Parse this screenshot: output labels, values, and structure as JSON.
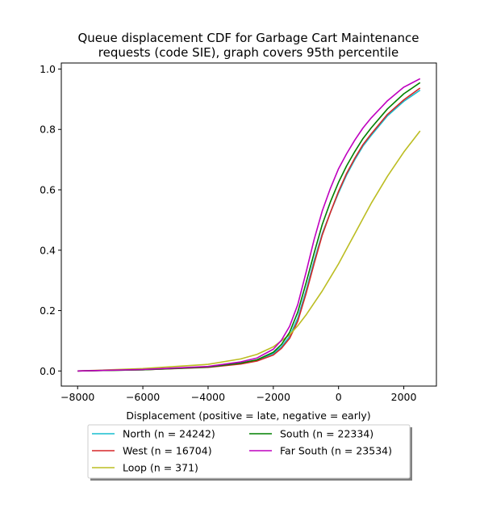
{
  "chart_data": {
    "type": "line",
    "title_lines": [
      "Queue displacement CDF for Garbage Cart Maintenance",
      "requests (code SIE), graph covers 95th percentile"
    ],
    "xlabel": "Displacement (positive = late, negative = early)",
    "ylabel": "",
    "xlim": [
      -8500,
      3000
    ],
    "ylim": [
      -0.05,
      1.02
    ],
    "xticks": [
      -8000,
      -6000,
      -4000,
      -2000,
      0,
      2000
    ],
    "yticks": [
      0.0,
      0.2,
      0.4,
      0.6,
      0.8,
      1.0
    ],
    "xtick_labels": [
      "−8000",
      "−6000",
      "−4000",
      "−2000",
      "0",
      "2000"
    ],
    "ytick_labels": [
      "0.0",
      "0.2",
      "0.4",
      "0.6",
      "0.8",
      "1.0"
    ],
    "grid": false,
    "legend_position": "below plot, center, two columns, with shadow",
    "series": [
      {
        "name": "North (n = 24242)",
        "color": "#17becf",
        "x": [
          -8000,
          -6000,
          -4000,
          -3000,
          -2500,
          -2000,
          -1750,
          -1500,
          -1250,
          -1000,
          -750,
          -500,
          -250,
          0,
          250,
          500,
          750,
          1000,
          1500,
          2000,
          2500
        ],
        "y": [
          0.0,
          0.004,
          0.013,
          0.025,
          0.035,
          0.058,
          0.08,
          0.115,
          0.175,
          0.265,
          0.365,
          0.455,
          0.525,
          0.59,
          0.65,
          0.7,
          0.745,
          0.78,
          0.845,
          0.893,
          0.93
        ]
      },
      {
        "name": "West (n = 16704)",
        "color": "#d62728",
        "x": [
          -8000,
          -6000,
          -4000,
          -3000,
          -2500,
          -2000,
          -1750,
          -1500,
          -1250,
          -1000,
          -750,
          -500,
          -250,
          0,
          250,
          500,
          750,
          1000,
          1500,
          2000,
          2500
        ],
        "y": [
          0.0,
          0.004,
          0.012,
          0.023,
          0.033,
          0.053,
          0.075,
          0.108,
          0.165,
          0.255,
          0.355,
          0.45,
          0.525,
          0.595,
          0.655,
          0.705,
          0.75,
          0.785,
          0.85,
          0.898,
          0.937
        ]
      },
      {
        "name": "Loop (n = 371)",
        "color": "#bcbd22",
        "x": [
          -8000,
          -6000,
          -4000,
          -3000,
          -2500,
          -2000,
          -1500,
          -1250,
          -1000,
          -750,
          -500,
          -250,
          0,
          250,
          500,
          750,
          1000,
          1500,
          2000,
          2500
        ],
        "y": [
          0.0,
          0.008,
          0.022,
          0.04,
          0.055,
          0.08,
          0.12,
          0.15,
          0.185,
          0.225,
          0.265,
          0.31,
          0.355,
          0.405,
          0.455,
          0.505,
          0.555,
          0.645,
          0.725,
          0.795
        ]
      },
      {
        "name": "South (n = 22334)",
        "color": "#008000",
        "x": [
          -8000,
          -6000,
          -4000,
          -3000,
          -2500,
          -2000,
          -1750,
          -1500,
          -1250,
          -1000,
          -750,
          -500,
          -250,
          0,
          250,
          500,
          750,
          1000,
          1500,
          2000,
          2500
        ],
        "y": [
          0.0,
          0.004,
          0.013,
          0.026,
          0.037,
          0.062,
          0.088,
          0.128,
          0.195,
          0.29,
          0.39,
          0.485,
          0.56,
          0.625,
          0.68,
          0.727,
          0.77,
          0.805,
          0.868,
          0.918,
          0.955
        ]
      },
      {
        "name": "Far South (n = 23534)",
        "color": "#bf00bf",
        "x": [
          -8000,
          -6000,
          -4000,
          -3000,
          -2500,
          -2000,
          -1750,
          -1500,
          -1250,
          -1000,
          -750,
          -500,
          -250,
          0,
          250,
          500,
          750,
          1000,
          1500,
          2000,
          2500
        ],
        "y": [
          0.0,
          0.005,
          0.015,
          0.03,
          0.043,
          0.072,
          0.102,
          0.148,
          0.22,
          0.325,
          0.435,
          0.53,
          0.605,
          0.67,
          0.72,
          0.765,
          0.805,
          0.838,
          0.895,
          0.94,
          0.968
        ]
      }
    ]
  }
}
